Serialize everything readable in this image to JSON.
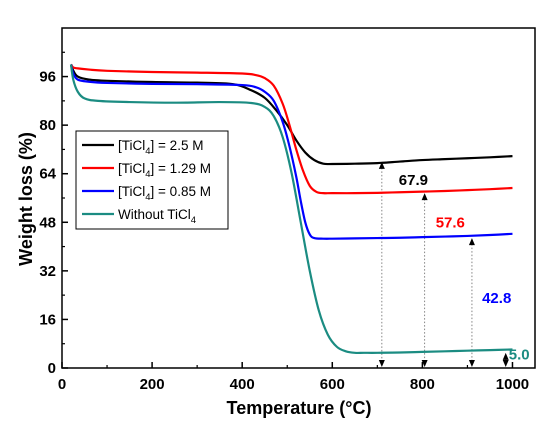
{
  "chart_data": {
    "type": "line",
    "xlabel": "Temperature (°C)",
    "ylabel": "Weight loss (%)",
    "xlim": [
      0,
      1050
    ],
    "ylim": [
      0,
      112
    ],
    "xticks": [
      0,
      200,
      400,
      600,
      800,
      1000
    ],
    "yticks": [
      0,
      16,
      32,
      48,
      64,
      80,
      96
    ],
    "grid": false,
    "legend_position": "middle-left",
    "series": [
      {
        "name_main": "[TiCl",
        "name_sub": "4",
        "name_tail": "] = 2.5 M",
        "color": "#000000",
        "x": [
          20,
          25,
          35,
          60,
          100,
          200,
          300,
          380,
          420,
          450,
          475,
          500,
          520,
          540,
          560,
          580,
          600,
          650,
          700,
          750,
          800,
          850,
          900,
          950,
          1000
        ],
        "y": [
          100,
          98,
          96,
          95,
          94.6,
          94.2,
          94,
          93.5,
          91.5,
          89,
          85,
          80,
          75,
          71,
          68.5,
          67.3,
          67.2,
          67.3,
          67.5,
          68,
          68.5,
          68.8,
          69.1,
          69.4,
          69.8
        ]
      },
      {
        "name_main": "[TiCl",
        "name_sub": "4",
        "name_tail": "] = 1.29 M",
        "color": "#ff0000",
        "x": [
          20,
          25,
          35,
          60,
          100,
          200,
          300,
          400,
          430,
          450,
          470,
          490,
          505,
          520,
          535,
          550,
          565,
          580,
          600,
          650,
          700,
          750,
          800,
          850,
          900,
          950,
          1000
        ],
        "y": [
          100,
          99,
          98.7,
          98.3,
          97.9,
          97.5,
          97.3,
          97,
          96.5,
          95.5,
          93,
          87,
          80,
          72,
          65,
          60,
          58,
          57.6,
          57.6,
          57.6,
          57.7,
          57.9,
          58.1,
          58.3,
          58.6,
          58.9,
          59.3
        ]
      },
      {
        "name_main": "[TiCl",
        "name_sub": "4",
        "name_tail": "] = 0.85 M",
        "color": "#0000ff",
        "x": [
          20,
          25,
          35,
          60,
          100,
          200,
          300,
          400,
          430,
          450,
          470,
          490,
          505,
          520,
          530,
          540,
          550,
          560,
          580,
          600,
          650,
          700,
          750,
          800,
          850,
          900,
          950,
          1000
        ],
        "y": [
          100,
          97,
          95,
          94.3,
          93.9,
          93.6,
          93.5,
          93.2,
          92.5,
          91,
          88,
          81,
          73,
          63,
          55,
          48,
          44,
          42.8,
          42.6,
          42.6,
          42.7,
          42.8,
          42.9,
          43.1,
          43.3,
          43.5,
          43.8,
          44.2
        ]
      },
      {
        "name_main": "Without TiCl",
        "name_sub": "4",
        "name_tail": "",
        "color": "#1b8c82",
        "x": [
          20,
          25,
          35,
          50,
          80,
          150,
          250,
          350,
          420,
          450,
          470,
          490,
          510,
          530,
          550,
          570,
          590,
          610,
          630,
          650,
          670,
          700,
          750,
          800,
          850,
          900,
          950,
          1000
        ],
        "y": [
          100,
          95,
          91,
          88.8,
          88,
          87.6,
          87.4,
          87.6,
          87.3,
          86,
          83,
          76,
          64,
          48,
          32,
          19,
          11,
          7,
          5.5,
          5,
          5,
          5,
          5.1,
          5.3,
          5.5,
          5.7,
          5.9,
          6.1
        ]
      }
    ],
    "annotations": [
      {
        "text": "67.9",
        "color": "#000000",
        "x": 780,
        "y": 62,
        "arrow_x": 710,
        "arrow_top": 67.9
      },
      {
        "text": "57.6",
        "color": "#ff0000",
        "x": 862,
        "y": 48,
        "arrow_x": 805,
        "arrow_top": 57.6
      },
      {
        "text": "42.8",
        "color": "#0000ff",
        "x": 965,
        "y": 23,
        "arrow_x": 910,
        "arrow_top": 42.8
      },
      {
        "text": "5.0",
        "color": "#1b8c82",
        "x": 1015,
        "y": 4.5,
        "arrow_x": 985,
        "arrow_top": 5.0
      }
    ]
  }
}
